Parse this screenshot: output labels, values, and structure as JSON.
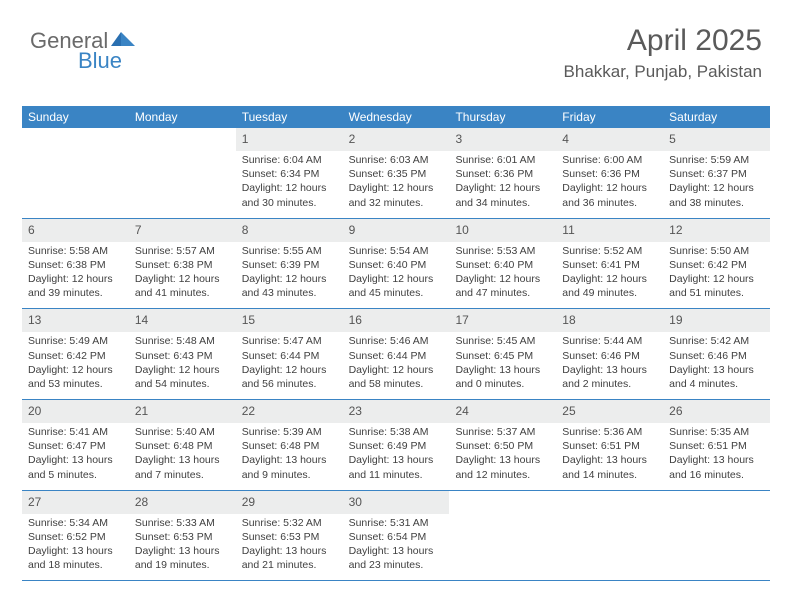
{
  "logo": {
    "text1": "General",
    "text2": "Blue"
  },
  "header": {
    "title": "April 2025",
    "location": "Bhakkar, Punjab, Pakistan"
  },
  "colors": {
    "headerBar": "#3a84c4",
    "dayNumBg": "#eceded",
    "borderRow": "#3a84c4",
    "textGray": "#5a5a5a",
    "cellText": "#404040"
  },
  "dayNames": [
    "Sunday",
    "Monday",
    "Tuesday",
    "Wednesday",
    "Thursday",
    "Friday",
    "Saturday"
  ],
  "weeks": [
    [
      null,
      null,
      {
        "n": "1",
        "sr": "Sunrise: 6:04 AM",
        "ss": "Sunset: 6:34 PM",
        "d1": "Daylight: 12 hours",
        "d2": "and 30 minutes."
      },
      {
        "n": "2",
        "sr": "Sunrise: 6:03 AM",
        "ss": "Sunset: 6:35 PM",
        "d1": "Daylight: 12 hours",
        "d2": "and 32 minutes."
      },
      {
        "n": "3",
        "sr": "Sunrise: 6:01 AM",
        "ss": "Sunset: 6:36 PM",
        "d1": "Daylight: 12 hours",
        "d2": "and 34 minutes."
      },
      {
        "n": "4",
        "sr": "Sunrise: 6:00 AM",
        "ss": "Sunset: 6:36 PM",
        "d1": "Daylight: 12 hours",
        "d2": "and 36 minutes."
      },
      {
        "n": "5",
        "sr": "Sunrise: 5:59 AM",
        "ss": "Sunset: 6:37 PM",
        "d1": "Daylight: 12 hours",
        "d2": "and 38 minutes."
      }
    ],
    [
      {
        "n": "6",
        "sr": "Sunrise: 5:58 AM",
        "ss": "Sunset: 6:38 PM",
        "d1": "Daylight: 12 hours",
        "d2": "and 39 minutes."
      },
      {
        "n": "7",
        "sr": "Sunrise: 5:57 AM",
        "ss": "Sunset: 6:38 PM",
        "d1": "Daylight: 12 hours",
        "d2": "and 41 minutes."
      },
      {
        "n": "8",
        "sr": "Sunrise: 5:55 AM",
        "ss": "Sunset: 6:39 PM",
        "d1": "Daylight: 12 hours",
        "d2": "and 43 minutes."
      },
      {
        "n": "9",
        "sr": "Sunrise: 5:54 AM",
        "ss": "Sunset: 6:40 PM",
        "d1": "Daylight: 12 hours",
        "d2": "and 45 minutes."
      },
      {
        "n": "10",
        "sr": "Sunrise: 5:53 AM",
        "ss": "Sunset: 6:40 PM",
        "d1": "Daylight: 12 hours",
        "d2": "and 47 minutes."
      },
      {
        "n": "11",
        "sr": "Sunrise: 5:52 AM",
        "ss": "Sunset: 6:41 PM",
        "d1": "Daylight: 12 hours",
        "d2": "and 49 minutes."
      },
      {
        "n": "12",
        "sr": "Sunrise: 5:50 AM",
        "ss": "Sunset: 6:42 PM",
        "d1": "Daylight: 12 hours",
        "d2": "and 51 minutes."
      }
    ],
    [
      {
        "n": "13",
        "sr": "Sunrise: 5:49 AM",
        "ss": "Sunset: 6:42 PM",
        "d1": "Daylight: 12 hours",
        "d2": "and 53 minutes."
      },
      {
        "n": "14",
        "sr": "Sunrise: 5:48 AM",
        "ss": "Sunset: 6:43 PM",
        "d1": "Daylight: 12 hours",
        "d2": "and 54 minutes."
      },
      {
        "n": "15",
        "sr": "Sunrise: 5:47 AM",
        "ss": "Sunset: 6:44 PM",
        "d1": "Daylight: 12 hours",
        "d2": "and 56 minutes."
      },
      {
        "n": "16",
        "sr": "Sunrise: 5:46 AM",
        "ss": "Sunset: 6:44 PM",
        "d1": "Daylight: 12 hours",
        "d2": "and 58 minutes."
      },
      {
        "n": "17",
        "sr": "Sunrise: 5:45 AM",
        "ss": "Sunset: 6:45 PM",
        "d1": "Daylight: 13 hours",
        "d2": "and 0 minutes."
      },
      {
        "n": "18",
        "sr": "Sunrise: 5:44 AM",
        "ss": "Sunset: 6:46 PM",
        "d1": "Daylight: 13 hours",
        "d2": "and 2 minutes."
      },
      {
        "n": "19",
        "sr": "Sunrise: 5:42 AM",
        "ss": "Sunset: 6:46 PM",
        "d1": "Daylight: 13 hours",
        "d2": "and 4 minutes."
      }
    ],
    [
      {
        "n": "20",
        "sr": "Sunrise: 5:41 AM",
        "ss": "Sunset: 6:47 PM",
        "d1": "Daylight: 13 hours",
        "d2": "and 5 minutes."
      },
      {
        "n": "21",
        "sr": "Sunrise: 5:40 AM",
        "ss": "Sunset: 6:48 PM",
        "d1": "Daylight: 13 hours",
        "d2": "and 7 minutes."
      },
      {
        "n": "22",
        "sr": "Sunrise: 5:39 AM",
        "ss": "Sunset: 6:48 PM",
        "d1": "Daylight: 13 hours",
        "d2": "and 9 minutes."
      },
      {
        "n": "23",
        "sr": "Sunrise: 5:38 AM",
        "ss": "Sunset: 6:49 PM",
        "d1": "Daylight: 13 hours",
        "d2": "and 11 minutes."
      },
      {
        "n": "24",
        "sr": "Sunrise: 5:37 AM",
        "ss": "Sunset: 6:50 PM",
        "d1": "Daylight: 13 hours",
        "d2": "and 12 minutes."
      },
      {
        "n": "25",
        "sr": "Sunrise: 5:36 AM",
        "ss": "Sunset: 6:51 PM",
        "d1": "Daylight: 13 hours",
        "d2": "and 14 minutes."
      },
      {
        "n": "26",
        "sr": "Sunrise: 5:35 AM",
        "ss": "Sunset: 6:51 PM",
        "d1": "Daylight: 13 hours",
        "d2": "and 16 minutes."
      }
    ],
    [
      {
        "n": "27",
        "sr": "Sunrise: 5:34 AM",
        "ss": "Sunset: 6:52 PM",
        "d1": "Daylight: 13 hours",
        "d2": "and 18 minutes."
      },
      {
        "n": "28",
        "sr": "Sunrise: 5:33 AM",
        "ss": "Sunset: 6:53 PM",
        "d1": "Daylight: 13 hours",
        "d2": "and 19 minutes."
      },
      {
        "n": "29",
        "sr": "Sunrise: 5:32 AM",
        "ss": "Sunset: 6:53 PM",
        "d1": "Daylight: 13 hours",
        "d2": "and 21 minutes."
      },
      {
        "n": "30",
        "sr": "Sunrise: 5:31 AM",
        "ss": "Sunset: 6:54 PM",
        "d1": "Daylight: 13 hours",
        "d2": "and 23 minutes."
      },
      null,
      null,
      null
    ]
  ]
}
